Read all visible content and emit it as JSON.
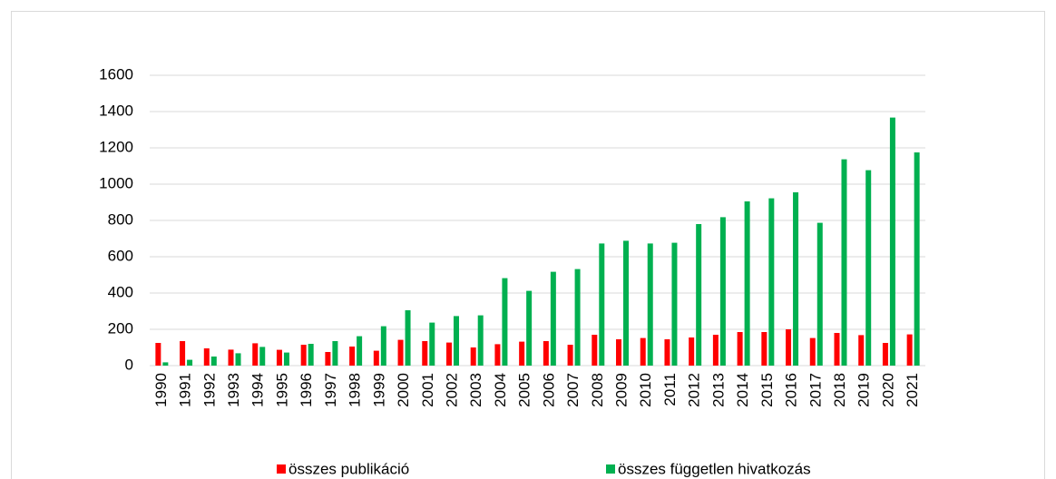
{
  "chart_data": {
    "type": "bar",
    "categories": [
      "1990",
      "1991",
      "1992",
      "1993",
      "1994",
      "1995",
      "1996",
      "1997",
      "1998",
      "1999",
      "2000",
      "2001",
      "2002",
      "2003",
      "2004",
      "2005",
      "2006",
      "2007",
      "2008",
      "2009",
      "2010",
      "2011",
      "2012",
      "2013",
      "2014",
      "2015",
      "2016",
      "2017",
      "2018",
      "2019",
      "2020",
      "2021"
    ],
    "series": [
      {
        "name": "összes publikáció",
        "color": "#ff0000",
        "values": [
          125,
          135,
          95,
          88,
          123,
          87,
          115,
          75,
          105,
          82,
          142,
          135,
          127,
          100,
          118,
          132,
          135,
          115,
          170,
          145,
          152,
          145,
          155,
          170,
          185,
          185,
          200,
          152,
          180,
          168,
          125,
          172
        ]
      },
      {
        "name": "összes független hivatkozás",
        "color": "#00b050",
        "values": [
          18,
          32,
          50,
          68,
          103,
          72,
          120,
          135,
          162,
          217,
          305,
          237,
          273,
          277,
          482,
          412,
          517,
          532,
          673,
          688,
          673,
          677,
          780,
          818,
          905,
          922,
          955,
          787,
          1137,
          1077,
          1367,
          1175
        ]
      }
    ],
    "ylim": [
      0,
      1600
    ],
    "yticks": [
      0,
      200,
      400,
      600,
      800,
      1000,
      1200,
      1400,
      1600
    ],
    "grid": true,
    "legend": "bottom"
  }
}
